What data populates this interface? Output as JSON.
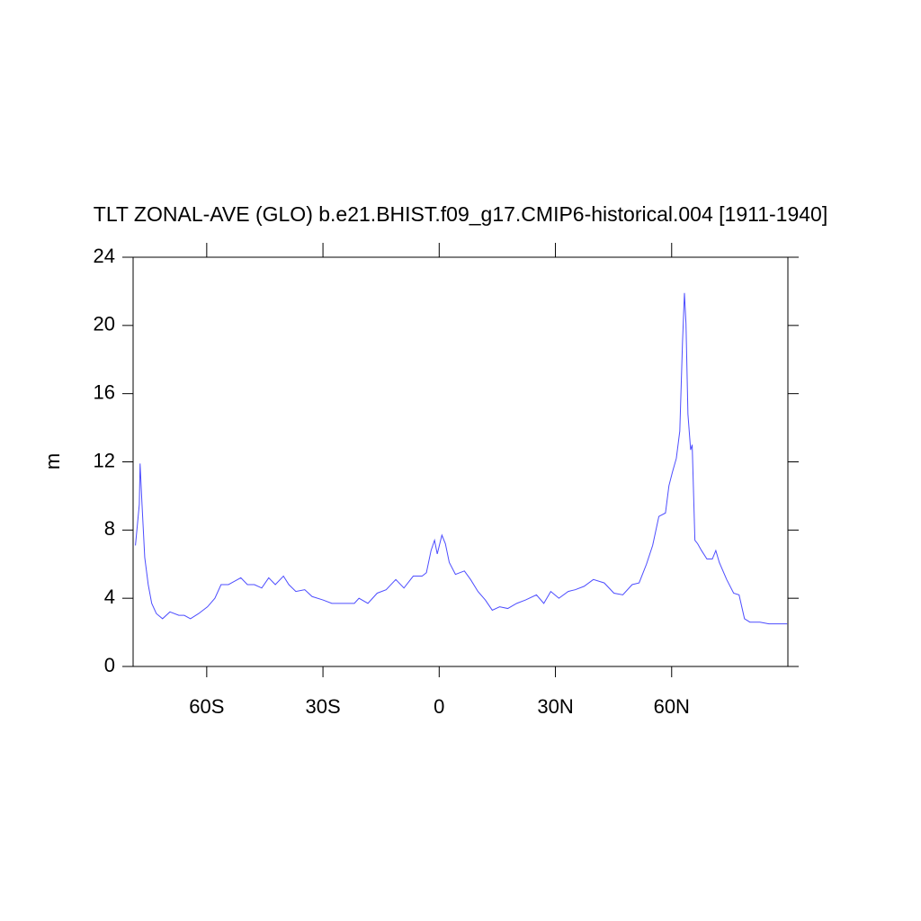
{
  "chart_data": {
    "type": "line",
    "title": "TLT ZONAL-AVE (GLO) b.e21.BHIST.f09_g17.CMIP6-historical.004 [1911-1940]",
    "y_label": "m",
    "x": [
      -78.4,
      -77.4,
      -77.2,
      -76.7,
      -76,
      -75.1,
      -74.2,
      -73,
      -71.4,
      -69.5,
      -67.2,
      -65.8,
      -64.2,
      -62.1,
      -59.8,
      -57.9,
      -56.3,
      -54.4,
      -52.8,
      -51.2,
      -49.5,
      -47.7,
      -45.8,
      -44,
      -42.3,
      -40.2,
      -38.8,
      -37,
      -34.7,
      -32.8,
      -30,
      -27.7,
      -24.2,
      -21.9,
      -20.7,
      -18.4,
      -16,
      -13.7,
      -11.2,
      -9.1,
      -6.7,
      -4.4,
      -3.3,
      -2.1,
      -1.2,
      -0.5,
      0.7,
      1.6,
      2.6,
      4.2,
      6.5,
      8.1,
      10,
      11.9,
      13.7,
      15.6,
      17.7,
      20,
      22.3,
      25.1,
      27,
      28.8,
      30.9,
      33.3,
      35.1,
      37.4,
      39.8,
      42.6,
      45.1,
      47.4,
      49.8,
      51.6,
      53.5,
      55.1,
      56.7,
      58.4,
      59.3,
      60.2,
      61.2,
      62.1,
      62.8,
      63.3,
      63.7,
      64.2,
      64.9,
      65.3,
      66,
      66.7,
      67.7,
      69.1,
      70.5,
      71.4,
      72.3,
      74.2,
      76,
      77.4,
      78.8,
      80.2,
      82.8,
      85.1,
      87.4,
      89.8
    ],
    "series": [
      {
        "color": "#4d4dff",
        "values": [
          7.1,
          9.5,
          11.9,
          9.5,
          6.4,
          4.8,
          3.7,
          3.1,
          2.8,
          3.2,
          3.0,
          3.0,
          2.8,
          3.1,
          3.5,
          4.0,
          4.8,
          4.8,
          5.0,
          5.2,
          4.8,
          4.8,
          4.6,
          5.2,
          4.8,
          5.3,
          4.8,
          4.4,
          4.5,
          4.1,
          3.9,
          3.7,
          3.7,
          3.7,
          4.0,
          3.7,
          4.3,
          4.5,
          5.1,
          4.6,
          5.3,
          5.3,
          5.5,
          6.8,
          7.4,
          6.6,
          7.7,
          7.2,
          6.1,
          5.4,
          5.6,
          5.1,
          4.4,
          3.9,
          3.3,
          3.5,
          3.4,
          3.7,
          3.9,
          4.2,
          3.7,
          4.4,
          4.0,
          4.4,
          4.5,
          4.7,
          5.1,
          4.9,
          4.3,
          4.2,
          4.8,
          4.9,
          6.0,
          7.1,
          8.8,
          9.0,
          10.6,
          11.4,
          12.2,
          13.8,
          19.0,
          21.9,
          20.1,
          14.8,
          12.7,
          13.0,
          7.4,
          7.2,
          6.8,
          6.3,
          6.3,
          6.8,
          6.1,
          5.1,
          4.3,
          4.2,
          2.8,
          2.6,
          2.6,
          2.5,
          2.5,
          2.5
        ]
      }
    ],
    "xlim": [
      -79,
      90
    ],
    "xticks": [
      {
        "value": -60,
        "label": "60S"
      },
      {
        "value": -30,
        "label": "30S"
      },
      0,
      {
        "value": 30,
        "label": "30N"
      },
      {
        "value": 60,
        "label": "60N"
      }
    ],
    "ylim": [
      0,
      24
    ],
    "yticks": [
      0,
      4,
      8,
      12,
      16,
      20,
      24
    ]
  }
}
